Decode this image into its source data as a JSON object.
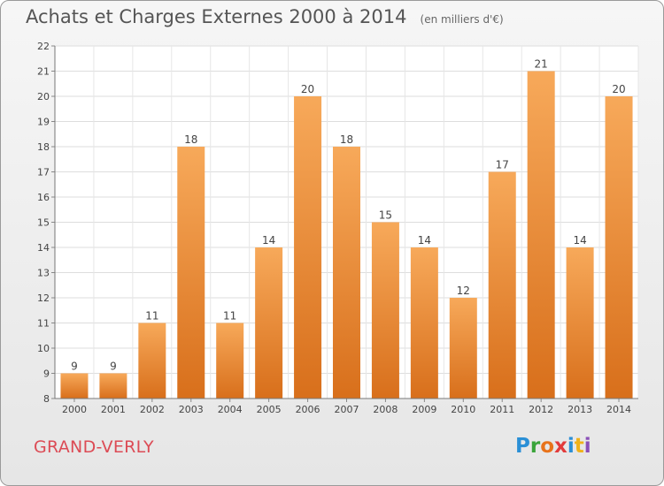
{
  "title": "Achats et Charges Externes 2000 à 2014",
  "unit_note": "(en milliers d'€)",
  "commune": "GRAND-VERLY",
  "logo": {
    "text": "Proxiti",
    "letters": [
      "P",
      "r",
      "o",
      "x",
      "i",
      "t",
      "i"
    ],
    "colors": [
      "#2a8fd6",
      "#3aa43a",
      "#e8731a",
      "#e23b3b",
      "#2a8fd6",
      "#f0b21a",
      "#8a4fb8"
    ]
  },
  "colors": {
    "bar_top": "#f7a95a",
    "bar_bottom": "#d86f1b",
    "title": "#555555",
    "commune": "#dc4b55"
  },
  "chart_data": {
    "type": "bar",
    "categories": [
      "2000",
      "2001",
      "2002",
      "2003",
      "2004",
      "2005",
      "2006",
      "2007",
      "2008",
      "2009",
      "2010",
      "2011",
      "2012",
      "2013",
      "2014"
    ],
    "values": [
      9,
      9,
      11,
      18,
      11,
      14,
      20,
      18,
      15,
      14,
      12,
      17,
      21,
      14,
      20
    ],
    "ylim": [
      8,
      22
    ],
    "yticks": [
      8,
      9,
      10,
      11,
      12,
      13,
      14,
      15,
      16,
      17,
      18,
      19,
      20,
      21,
      22
    ],
    "grid": true,
    "legend": "none",
    "data_labels": true
  }
}
